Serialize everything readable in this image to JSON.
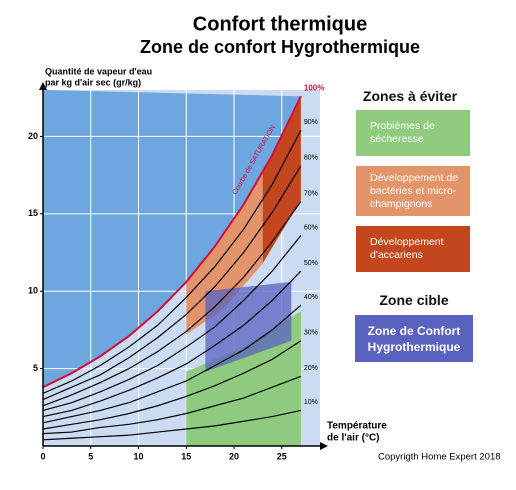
{
  "chart_data": {
    "type": "line",
    "title": "Confort thermique",
    "subtitle": "Zone de confort Hygrothermique",
    "y_label": [
      "Quantité de vapeur d'eau",
      "par kg d'air sec (gr/kg)"
    ],
    "x_label": [
      "Température",
      "de l'air (°C)"
    ],
    "annotation": "Courbe de SATURATION",
    "copyright": "Copyrigth Home Expert 2018",
    "legend_titles": [
      "Zones à éviter",
      "Zone cible"
    ],
    "x": [
      0,
      3,
      6,
      9,
      12,
      15,
      18,
      21,
      24,
      27
    ],
    "series": [
      {
        "name": "10%",
        "color": "#000000",
        "values": [
          0.4,
          0.5,
          0.6,
          0.7,
          0.9,
          1.1,
          1.3,
          1.6,
          1.9,
          2.3
        ]
      },
      {
        "name": "20%",
        "color": "#000000",
        "values": [
          0.8,
          0.9,
          1.2,
          1.4,
          1.7,
          2.1,
          2.6,
          3.1,
          3.8,
          4.5
        ]
      },
      {
        "name": "30%",
        "color": "#000000",
        "values": [
          1.1,
          1.4,
          1.7,
          2.1,
          2.6,
          3.2,
          3.9,
          4.7,
          5.6,
          6.8
        ]
      },
      {
        "name": "40%",
        "color": "#000000",
        "values": [
          1.5,
          1.9,
          2.3,
          2.8,
          3.5,
          4.2,
          5.2,
          6.2,
          7.5,
          9.1
        ]
      },
      {
        "name": "50%",
        "color": "#000000",
        "values": [
          1.9,
          2.3,
          2.9,
          3.6,
          4.4,
          5.3,
          6.5,
          7.8,
          9.4,
          11.3
        ]
      },
      {
        "name": "60%",
        "color": "#000000",
        "values": [
          2.3,
          2.8,
          3.5,
          4.3,
          5.2,
          6.4,
          7.7,
          9.4,
          11.3,
          13.6
        ]
      },
      {
        "name": "70%",
        "color": "#000000",
        "values": [
          2.6,
          3.3,
          4.1,
          5.0,
          6.1,
          7.4,
          9.0,
          10.9,
          13.2,
          15.8
        ]
      },
      {
        "name": "80%",
        "color": "#000000",
        "values": [
          3.0,
          3.8,
          4.6,
          5.7,
          7.0,
          8.5,
          10.3,
          12.5,
          15.1,
          18.1
        ]
      },
      {
        "name": "90%",
        "color": "#000000",
        "values": [
          3.4,
          4.2,
          5.2,
          6.4,
          7.8,
          9.6,
          11.6,
          14.0,
          16.9,
          20.4
        ]
      },
      {
        "name": "100%",
        "color": "#d0103a",
        "values": [
          3.8,
          4.7,
          5.8,
          7.1,
          8.7,
          10.6,
          12.9,
          15.6,
          18.8,
          22.6
        ]
      }
    ],
    "zones": [
      {
        "name": "Problèmes de sécheresse",
        "color": "#8fcb7e",
        "points": [
          [
            15,
            0
          ],
          [
            27,
            0
          ],
          [
            27,
            8.7
          ],
          [
            21,
            6.4
          ],
          [
            15,
            4.8
          ]
        ]
      },
      {
        "name": "Développement de bactéries et micro-champignons",
        "color": "#e3946a",
        "points": [
          [
            15,
            10.6
          ],
          [
            18,
            12.9
          ],
          [
            21,
            15.6
          ],
          [
            23,
            17.7
          ],
          [
            23,
            11.8
          ],
          [
            19,
            8.9
          ],
          [
            15,
            7.2
          ]
        ]
      },
      {
        "name": "Développement d'accariens",
        "color": "#c4461e",
        "points": [
          [
            23,
            17.7
          ],
          [
            24,
            18.8
          ],
          [
            27,
            22.6
          ],
          [
            27,
            15.9
          ],
          [
            23,
            11.8
          ]
        ]
      },
      {
        "name": "Zone de Confort Hygrothermique",
        "color": "#5a62c0",
        "points": [
          [
            17,
            10.0
          ],
          [
            26,
            10.6
          ],
          [
            26,
            6.8
          ],
          [
            17,
            4.8
          ]
        ]
      }
    ],
    "xlim": [
      0,
      29
    ],
    "ylim": [
      0,
      23
    ],
    "xticks": [
      0,
      5,
      10,
      15,
      20,
      25
    ],
    "yticks": [
      5,
      10,
      15,
      20
    ],
    "grid": true,
    "plot_color": "#cbdcf2",
    "saturation_color": "#6ea6df"
  }
}
